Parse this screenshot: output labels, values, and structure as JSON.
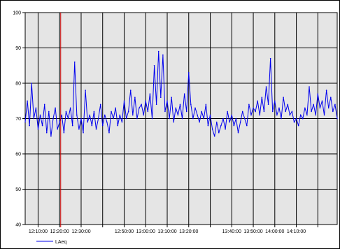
{
  "chart_data": {
    "type": "line",
    "title": "",
    "xlabel": "",
    "ylabel": "",
    "ylim": [
      40,
      100
    ],
    "yticks": [
      40,
      50,
      60,
      70,
      80,
      90,
      100
    ],
    "grid": true,
    "legend": "bottom-left",
    "x_range": [
      "12:04:00",
      "14:29:00"
    ],
    "x_gridlines": [
      "12:10:00",
      "12:20:00",
      "12:30:00",
      "12:40:00",
      "12:50:00",
      "13:00:00",
      "13:10:00",
      "13:20:00",
      "13:30:00",
      "13:40:00",
      "13:50:00",
      "14:00:00",
      "14:10:00",
      "14:20:00"
    ],
    "x_tick_labels": [
      "12:10:00",
      "12:20:00",
      "12:30:00",
      "12:50:00",
      "13:00:00",
      "13:10:00",
      "13:20:00",
      "13:40:00",
      "13:50:00",
      "14:00:00",
      "14:10:00"
    ],
    "cursor_time": "12:20:30",
    "series": [
      {
        "name": "LAeq",
        "color": "#0000ee",
        "x": [
          "12:04:00",
          "12:05:00",
          "12:06:00",
          "12:07:00",
          "12:08:00",
          "12:09:00",
          "12:10:00",
          "12:11:00",
          "12:12:00",
          "12:13:00",
          "12:14:00",
          "12:15:00",
          "12:16:00",
          "12:17:00",
          "12:18:00",
          "12:19:00",
          "12:20:00",
          "12:21:00",
          "12:22:00",
          "12:23:00",
          "12:24:00",
          "12:25:00",
          "12:26:00",
          "12:27:00",
          "12:28:00",
          "12:29:00",
          "12:30:00",
          "12:31:00",
          "12:32:00",
          "12:33:00",
          "12:34:00",
          "12:35:00",
          "12:36:00",
          "12:37:00",
          "12:38:00",
          "12:39:00",
          "12:40:00",
          "12:41:00",
          "12:42:00",
          "12:43:00",
          "12:44:00",
          "12:45:00",
          "12:46:00",
          "12:47:00",
          "12:48:00",
          "12:49:00",
          "12:50:00",
          "12:51:00",
          "12:52:00",
          "12:53:00",
          "12:54:00",
          "12:55:00",
          "12:56:00",
          "12:57:00",
          "12:58:00",
          "12:59:00",
          "13:00:00",
          "13:01:00",
          "13:02:00",
          "13:03:00",
          "13:04:00",
          "13:05:00",
          "13:06:00",
          "13:07:00",
          "13:08:00",
          "13:09:00",
          "13:10:00",
          "13:11:00",
          "13:12:00",
          "13:13:00",
          "13:14:00",
          "13:15:00",
          "13:16:00",
          "13:17:00",
          "13:18:00",
          "13:19:00",
          "13:20:00",
          "13:21:00",
          "13:22:00",
          "13:23:00",
          "13:24:00",
          "13:25:00",
          "13:26:00",
          "13:27:00",
          "13:28:00",
          "13:29:00",
          "13:30:00",
          "13:31:00",
          "13:32:00",
          "13:33:00",
          "13:34:00",
          "13:35:00",
          "13:36:00",
          "13:37:00",
          "13:38:00",
          "13:39:00",
          "13:40:00",
          "13:41:00",
          "13:42:00",
          "13:43:00",
          "13:44:00",
          "13:45:00",
          "13:46:00",
          "13:47:00",
          "13:48:00",
          "13:49:00",
          "13:50:00",
          "13:51:00",
          "13:52:00",
          "13:53:00",
          "13:54:00",
          "13:55:00",
          "13:56:00",
          "13:57:00",
          "13:58:00",
          "13:59:00",
          "14:00:00",
          "14:01:00",
          "14:02:00",
          "14:03:00",
          "14:04:00",
          "14:05:00",
          "14:06:00",
          "14:07:00",
          "14:08:00",
          "14:09:00",
          "14:10:00",
          "14:11:00",
          "14:12:00",
          "14:13:00",
          "14:14:00",
          "14:15:00",
          "14:16:00",
          "14:17:00",
          "14:18:00",
          "14:19:00",
          "14:20:00",
          "14:21:00",
          "14:22:00",
          "14:23:00",
          "14:24:00",
          "14:25:00",
          "14:26:00",
          "14:27:00",
          "14:28:00",
          "14:29:00"
        ],
        "values": [
          69,
          75,
          68,
          80,
          70,
          73,
          67,
          71,
          68,
          74,
          66,
          72,
          65,
          70,
          73,
          67,
          69,
          71,
          66,
          72,
          70,
          73,
          68,
          86,
          71,
          67,
          70,
          66,
          78,
          69,
          71,
          68,
          72,
          67,
          70,
          74,
          68,
          71,
          69,
          66,
          72,
          70,
          73,
          68,
          71,
          69,
          75,
          70,
          72,
          78,
          71,
          76,
          70,
          73,
          74,
          71,
          75,
          72,
          77,
          70,
          85,
          74,
          89,
          76,
          88,
          72,
          75,
          70,
          76,
          69,
          73,
          71,
          74,
          70,
          77,
          72,
          83,
          74,
          70,
          73,
          71,
          69,
          72,
          70,
          74,
          68,
          71,
          67,
          65,
          69,
          66,
          68,
          70,
          67,
          72,
          69,
          71,
          68,
          70,
          66,
          69,
          72,
          70,
          68,
          74,
          71,
          73,
          72,
          75,
          71,
          76,
          72,
          79,
          74,
          87,
          72,
          75,
          71,
          73,
          70,
          76,
          72,
          74,
          71,
          72,
          69,
          70,
          68,
          71,
          70,
          73,
          71,
          79,
          72,
          74,
          71,
          77,
          73,
          75,
          71,
          78,
          73,
          76,
          72,
          74,
          70
        ]
      }
    ]
  }
}
